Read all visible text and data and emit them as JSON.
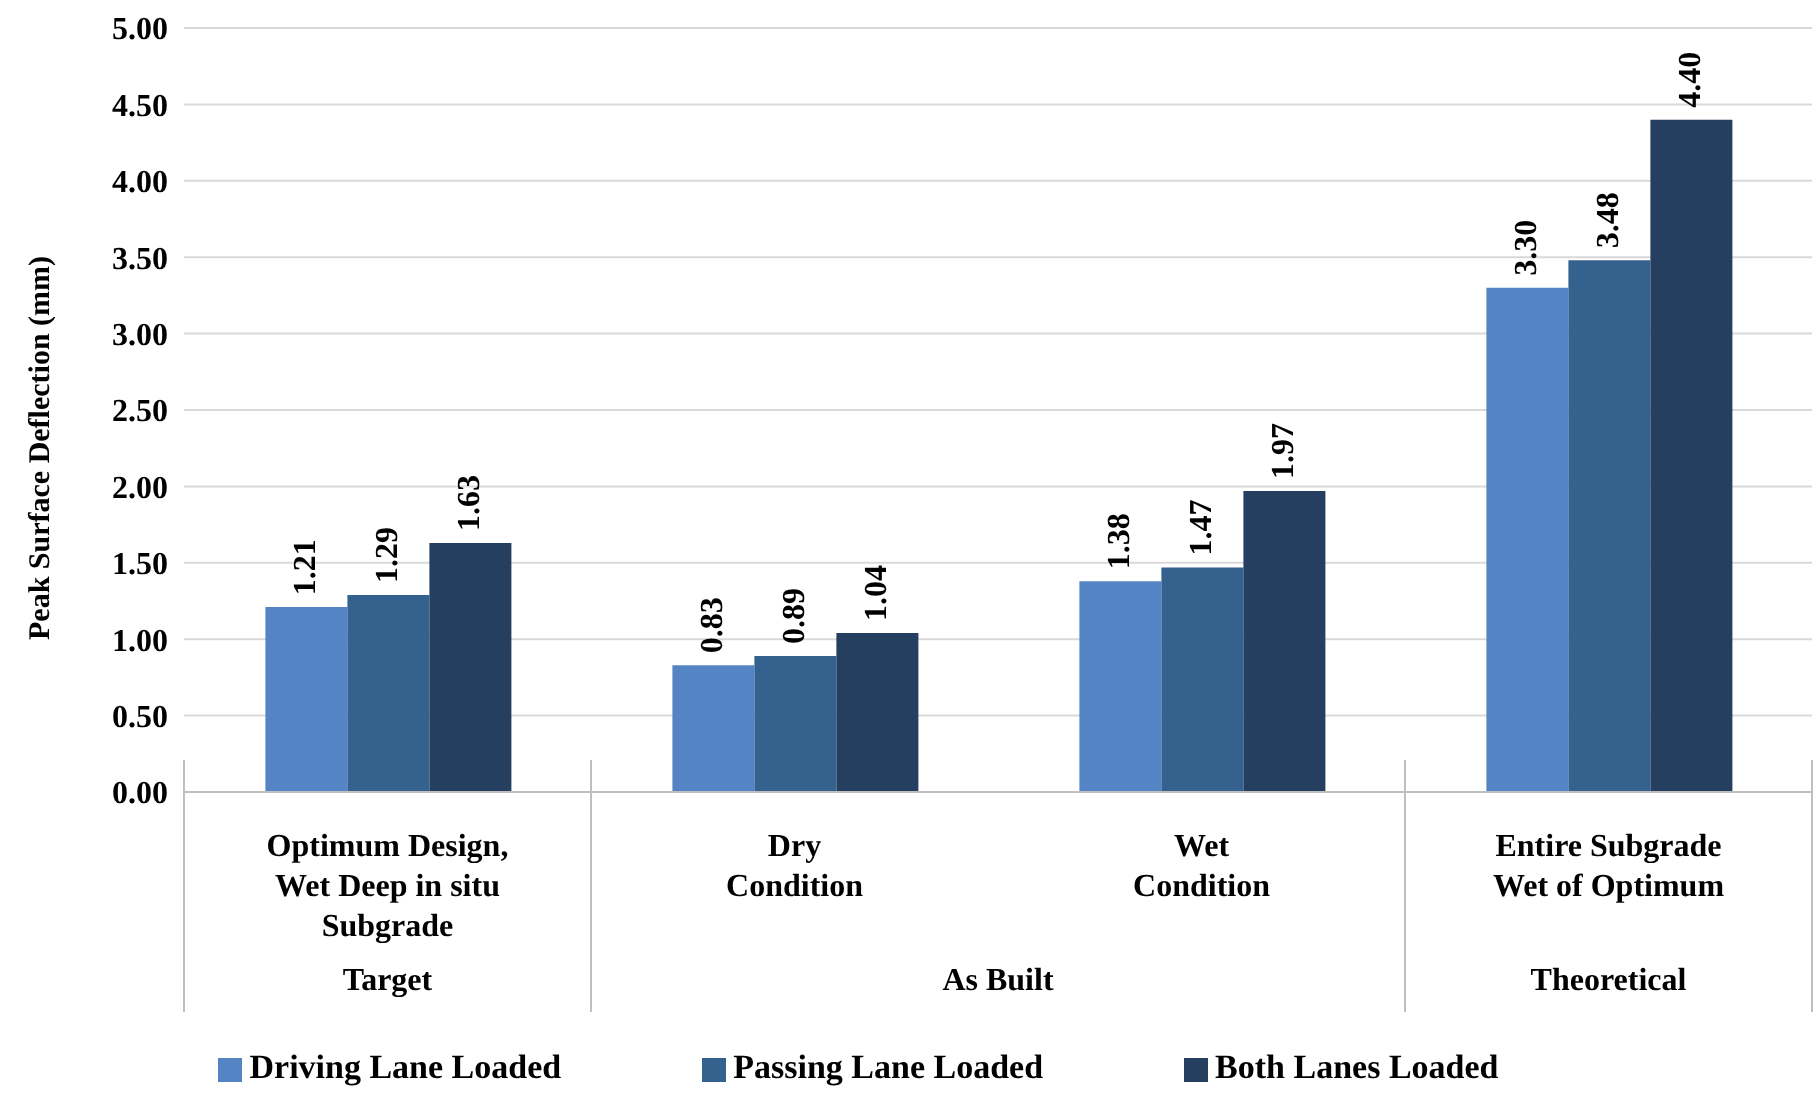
{
  "chart_data": {
    "type": "bar",
    "ylabel": "Peak Surface Deflection (mm)",
    "categories": [
      "Optimum Design,\nWet Deep in situ\nSubgrade",
      "Dry\nCondition",
      "Wet\nCondition",
      "Entire Subgrade\nWet of Optimum"
    ],
    "series": [
      {
        "name": "Driving Lane Loaded",
        "color": "#5584c4",
        "values": [
          1.21,
          0.83,
          1.38,
          3.3
        ],
        "value_labels": [
          "1.21",
          "0.83",
          "1.38",
          "3.30"
        ]
      },
      {
        "name": "Passing Lane Loaded",
        "color": "#35618f",
        "values": [
          1.29,
          0.89,
          1.47,
          3.48
        ],
        "value_labels": [
          "1.29",
          "0.89",
          "1.47",
          "3.48"
        ]
      },
      {
        "name": "Both Lanes Loaded",
        "color": "#253f60",
        "values": [
          1.63,
          1.04,
          1.97,
          4.4
        ],
        "value_labels": [
          "1.63",
          "1.04",
          "1.97",
          "4.40"
        ]
      }
    ],
    "ylim": [
      0,
      5
    ],
    "yticks": [
      {
        "value": 0,
        "label": "0.00"
      },
      {
        "value": 0.5,
        "label": "0.50"
      },
      {
        "value": 1,
        "label": "1.00"
      },
      {
        "value": 1.5,
        "label": "1.50"
      },
      {
        "value": 2,
        "label": "2.00"
      },
      {
        "value": 2.5,
        "label": "2.50"
      },
      {
        "value": 3,
        "label": "3.00"
      },
      {
        "value": 3.5,
        "label": "3.50"
      },
      {
        "value": 4,
        "label": "4.00"
      },
      {
        "value": 4.5,
        "label": "4.50"
      },
      {
        "value": 5,
        "label": "5.00"
      }
    ],
    "grid": "y",
    "legend": "bottom",
    "annotations": [
      "Target",
      "As Built",
      "Theoretical"
    ]
  }
}
